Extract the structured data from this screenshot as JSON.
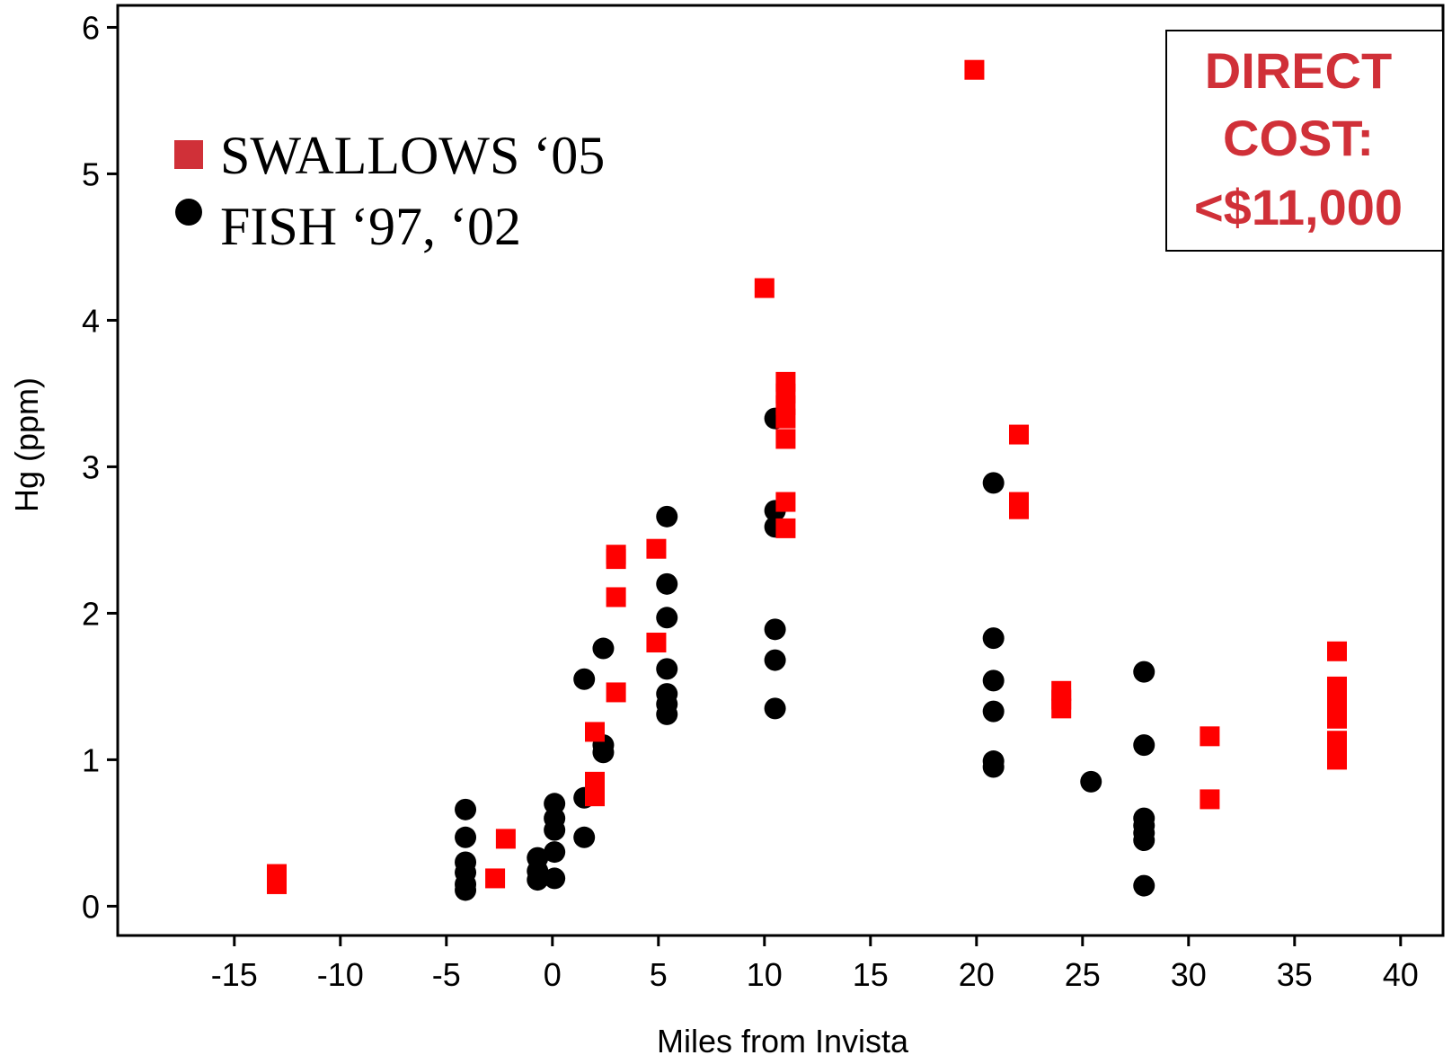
{
  "chart_data": {
    "type": "scatter",
    "xlabel": "Miles from Invista",
    "ylabel": "Hg (ppm)",
    "xlim": [
      -20.5,
      42
    ],
    "ylim": [
      -0.2,
      6.15
    ],
    "xticks": [
      -15,
      -10,
      -5,
      0,
      5,
      10,
      15,
      20,
      25,
      30,
      35,
      40
    ],
    "yticks": [
      0,
      1,
      2,
      3,
      4,
      5,
      6
    ],
    "xtick_labels": [
      "-15",
      "-10",
      "-5",
      "0",
      "5",
      "10",
      "15",
      "20",
      "25",
      "30",
      "35",
      "40"
    ],
    "ytick_labels": [
      "0",
      "1",
      "2",
      "3",
      "4",
      "5",
      "6"
    ],
    "grid": false,
    "legend_position": "top-left",
    "series": [
      {
        "name": "SWALLOWS ‘05",
        "marker": "square",
        "color": "#ff0000",
        "legend_color": "#d03038",
        "points": [
          [
            -13,
            0.22
          ],
          [
            -13,
            0.15
          ],
          [
            -2.7,
            0.19
          ],
          [
            -2.2,
            0.46
          ],
          [
            2.0,
            1.19
          ],
          [
            2.0,
            0.85
          ],
          [
            2.0,
            0.75
          ],
          [
            3.0,
            2.4
          ],
          [
            3.0,
            2.37
          ],
          [
            3.0,
            2.11
          ],
          [
            3.0,
            1.46
          ],
          [
            4.9,
            2.44
          ],
          [
            4.9,
            1.8
          ],
          [
            10.0,
            4.22
          ],
          [
            11.0,
            3.58
          ],
          [
            11.0,
            3.5
          ],
          [
            11.0,
            3.42
          ],
          [
            11.0,
            3.33
          ],
          [
            11.0,
            3.19
          ],
          [
            11.0,
            2.76
          ],
          [
            11.0,
            2.58
          ],
          [
            19.9,
            5.71
          ],
          [
            22.0,
            3.22
          ],
          [
            22.0,
            2.76
          ],
          [
            22.0,
            2.71
          ],
          [
            24.0,
            1.47
          ],
          [
            24.0,
            1.41
          ],
          [
            24.0,
            1.35
          ],
          [
            31.0,
            1.16
          ],
          [
            31.0,
            0.73
          ],
          [
            37.0,
            1.74
          ],
          [
            37.0,
            1.5
          ],
          [
            37.0,
            1.43
          ],
          [
            37.0,
            1.35
          ],
          [
            37.0,
            1.28
          ],
          [
            37.0,
            1.13
          ],
          [
            37.0,
            1.06
          ],
          [
            37.0,
            1.0
          ]
        ]
      },
      {
        "name": "FISH ‘97, ‘02",
        "marker": "circle",
        "color": "#000000",
        "legend_color": "#000000",
        "points": [
          [
            -4.1,
            0.66
          ],
          [
            -4.1,
            0.47
          ],
          [
            -4.1,
            0.3
          ],
          [
            -4.1,
            0.23
          ],
          [
            -4.1,
            0.15
          ],
          [
            -4.1,
            0.11
          ],
          [
            -0.7,
            0.33
          ],
          [
            -0.7,
            0.24
          ],
          [
            -0.7,
            0.18
          ],
          [
            0.1,
            0.7
          ],
          [
            0.1,
            0.6
          ],
          [
            0.1,
            0.52
          ],
          [
            0.1,
            0.37
          ],
          [
            0.1,
            0.19
          ],
          [
            1.5,
            1.55
          ],
          [
            1.5,
            0.74
          ],
          [
            1.5,
            0.47
          ],
          [
            2.4,
            1.76
          ],
          [
            2.4,
            1.1
          ],
          [
            2.4,
            1.05
          ],
          [
            5.4,
            2.66
          ],
          [
            5.4,
            2.2
          ],
          [
            5.4,
            1.97
          ],
          [
            5.4,
            1.62
          ],
          [
            5.4,
            1.45
          ],
          [
            5.4,
            1.38
          ],
          [
            5.4,
            1.31
          ],
          [
            10.5,
            3.33
          ],
          [
            10.5,
            2.7
          ],
          [
            10.5,
            2.59
          ],
          [
            10.5,
            1.89
          ],
          [
            10.5,
            1.68
          ],
          [
            10.5,
            1.35
          ],
          [
            20.8,
            2.89
          ],
          [
            20.8,
            1.83
          ],
          [
            20.8,
            1.54
          ],
          [
            20.8,
            1.33
          ],
          [
            20.8,
            0.99
          ],
          [
            20.8,
            0.95
          ],
          [
            25.4,
            0.85
          ],
          [
            27.9,
            1.6
          ],
          [
            27.9,
            1.1
          ],
          [
            27.9,
            0.6
          ],
          [
            27.9,
            0.55
          ],
          [
            27.9,
            0.5
          ],
          [
            27.9,
            0.45
          ],
          [
            27.9,
            0.14
          ]
        ]
      }
    ],
    "annotations": [
      {
        "lines": [
          "DIRECT",
          "COST:",
          "<$11,000"
        ],
        "color": "#d03038",
        "position": "top-right",
        "boxed": true
      }
    ]
  }
}
